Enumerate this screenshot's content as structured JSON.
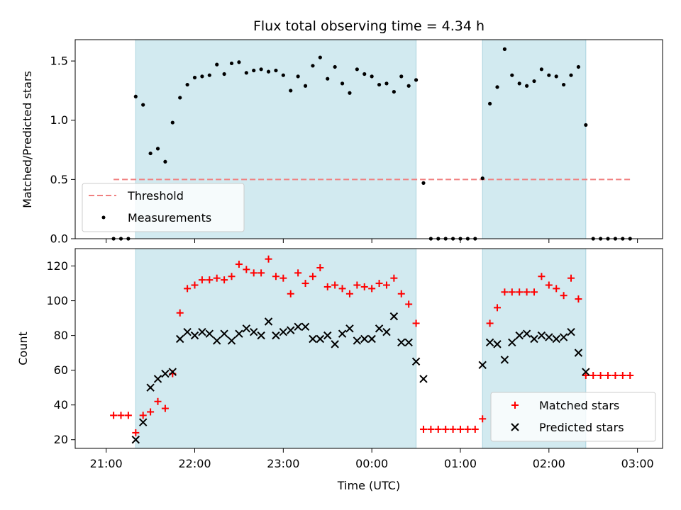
{
  "chart_data": {
    "type": "scatter",
    "title": "Flux total observing time = 4.34 h",
    "xlabel": "Time (UTC)",
    "x_tick_labels": [
      "21:00",
      "22:00",
      "23:00",
      "00:00",
      "01:00",
      "02:00",
      "03:00"
    ],
    "shaded_intervals": [
      [
        "21:20",
        "00:30"
      ],
      [
        "01:15",
        "02:25"
      ]
    ],
    "shade_color": "#d2eaf0",
    "top_panel": {
      "ylabel": "Matched/Predicted stars",
      "ylim": [
        0,
        1.68
      ],
      "y_tick_labels": [
        "0.0",
        "0.5",
        "1.0",
        "1.5"
      ],
      "threshold": {
        "name": "Threshold",
        "value": 0.5,
        "x_range": [
          "21:05",
          "02:55"
        ],
        "color": "#f08080"
      },
      "measurements": {
        "name": "Measurements",
        "color": "#000000",
        "times": [
          "21:05",
          "21:10",
          "21:15",
          "21:20",
          "21:25",
          "21:30",
          "21:35",
          "21:40",
          "21:45",
          "21:50",
          "21:55",
          "22:00",
          "22:05",
          "22:10",
          "22:15",
          "22:20",
          "22:25",
          "22:30",
          "22:35",
          "22:40",
          "22:45",
          "22:50",
          "22:55",
          "23:00",
          "23:05",
          "23:10",
          "23:15",
          "23:20",
          "23:25",
          "23:30",
          "23:35",
          "23:40",
          "23:45",
          "23:50",
          "23:55",
          "00:00",
          "00:05",
          "00:10",
          "00:15",
          "00:20",
          "00:25",
          "00:30",
          "00:35",
          "00:40",
          "00:45",
          "00:50",
          "00:55",
          "01:00",
          "01:05",
          "01:10",
          "01:15",
          "01:20",
          "01:25",
          "01:30",
          "01:35",
          "01:40",
          "01:45",
          "01:50",
          "01:55",
          "02:00",
          "02:05",
          "02:10",
          "02:15",
          "02:20",
          "02:25",
          "02:30",
          "02:35",
          "02:40",
          "02:45",
          "02:50",
          "02:55"
        ],
        "values": [
          0,
          0,
          0,
          1.2,
          1.13,
          0.72,
          0.76,
          0.65,
          0.98,
          1.19,
          1.3,
          1.36,
          1.37,
          1.38,
          1.47,
          1.39,
          1.48,
          1.49,
          1.4,
          1.42,
          1.43,
          1.41,
          1.42,
          1.38,
          1.25,
          1.37,
          1.29,
          1.46,
          1.53,
          1.35,
          1.45,
          1.31,
          1.23,
          1.43,
          1.39,
          1.37,
          1.3,
          1.31,
          1.24,
          1.37,
          1.29,
          1.34,
          0.47,
          0,
          0,
          0,
          0,
          0,
          0,
          0,
          0.51,
          1.14,
          1.28,
          1.6,
          1.38,
          1.31,
          1.29,
          1.33,
          1.43,
          1.38,
          1.37,
          1.3,
          1.38,
          1.45,
          0.96,
          0,
          0,
          0,
          0,
          0,
          0
        ]
      }
    },
    "bottom_panel": {
      "ylabel": "Count",
      "ylim": [
        15,
        130
      ],
      "y_tick_labels": [
        "20",
        "40",
        "60",
        "80",
        "100",
        "120"
      ],
      "series": [
        {
          "name": "Matched stars",
          "marker": "+",
          "color": "#ff0000",
          "times": [
            "21:05",
            "21:10",
            "21:15",
            "21:20",
            "21:25",
            "21:30",
            "21:35",
            "21:40",
            "21:45",
            "21:50",
            "21:55",
            "22:00",
            "22:05",
            "22:10",
            "22:15",
            "22:20",
            "22:25",
            "22:30",
            "22:35",
            "22:40",
            "22:45",
            "22:50",
            "22:55",
            "23:00",
            "23:05",
            "23:10",
            "23:15",
            "23:20",
            "23:25",
            "23:30",
            "23:35",
            "23:40",
            "23:45",
            "23:50",
            "23:55",
            "00:00",
            "00:05",
            "00:10",
            "00:15",
            "00:20",
            "00:25",
            "00:30",
            "00:35",
            "00:40",
            "00:45",
            "00:50",
            "00:55",
            "01:00",
            "01:05",
            "01:10",
            "01:15",
            "01:20",
            "01:25",
            "01:30",
            "01:35",
            "01:40",
            "01:45",
            "01:50",
            "01:55",
            "02:00",
            "02:05",
            "02:10",
            "02:15",
            "02:20",
            "02:25",
            "02:30",
            "02:35",
            "02:40",
            "02:45",
            "02:50",
            "02:55"
          ],
          "values": [
            34,
            34,
            34,
            24,
            34,
            36,
            42,
            38,
            58,
            93,
            107,
            109,
            112,
            112,
            113,
            112,
            114,
            121,
            118,
            116,
            116,
            124,
            114,
            113,
            104,
            116,
            110,
            114,
            119,
            108,
            109,
            107,
            104,
            109,
            108,
            107,
            110,
            109,
            113,
            104,
            98,
            87,
            26,
            26,
            26,
            26,
            26,
            26,
            26,
            26,
            32,
            87,
            96,
            105,
            105,
            105,
            105,
            105,
            114,
            109,
            107,
            103,
            113,
            101,
            57,
            57,
            57,
            57,
            57,
            57,
            57
          ]
        },
        {
          "name": "Predicted stars",
          "marker": "x",
          "color": "#000000",
          "times": [
            "21:20",
            "21:25",
            "21:30",
            "21:35",
            "21:40",
            "21:45",
            "21:50",
            "21:55",
            "22:00",
            "22:05",
            "22:10",
            "22:15",
            "22:20",
            "22:25",
            "22:30",
            "22:35",
            "22:40",
            "22:45",
            "22:50",
            "22:55",
            "23:00",
            "23:05",
            "23:10",
            "23:15",
            "23:20",
            "23:25",
            "23:30",
            "23:35",
            "23:40",
            "23:45",
            "23:50",
            "23:55",
            "00:00",
            "00:05",
            "00:10",
            "00:15",
            "00:20",
            "00:25",
            "00:30",
            "00:35",
            "01:15",
            "01:20",
            "01:25",
            "01:30",
            "01:35",
            "01:40",
            "01:45",
            "01:50",
            "01:55",
            "02:00",
            "02:05",
            "02:10",
            "02:15",
            "02:20",
            "02:25"
          ],
          "values": [
            20,
            30,
            50,
            55,
            58,
            59,
            78,
            82,
            80,
            82,
            81,
            77,
            81,
            77,
            81,
            84,
            82,
            80,
            88,
            80,
            82,
            83,
            85,
            85,
            78,
            78,
            80,
            75,
            81,
            84,
            77,
            78,
            78,
            84,
            82,
            91,
            76,
            76,
            65,
            55,
            63,
            76,
            75,
            66,
            76,
            80,
            81,
            78,
            80,
            79,
            78,
            79,
            82,
            70,
            59
          ]
        }
      ]
    }
  }
}
